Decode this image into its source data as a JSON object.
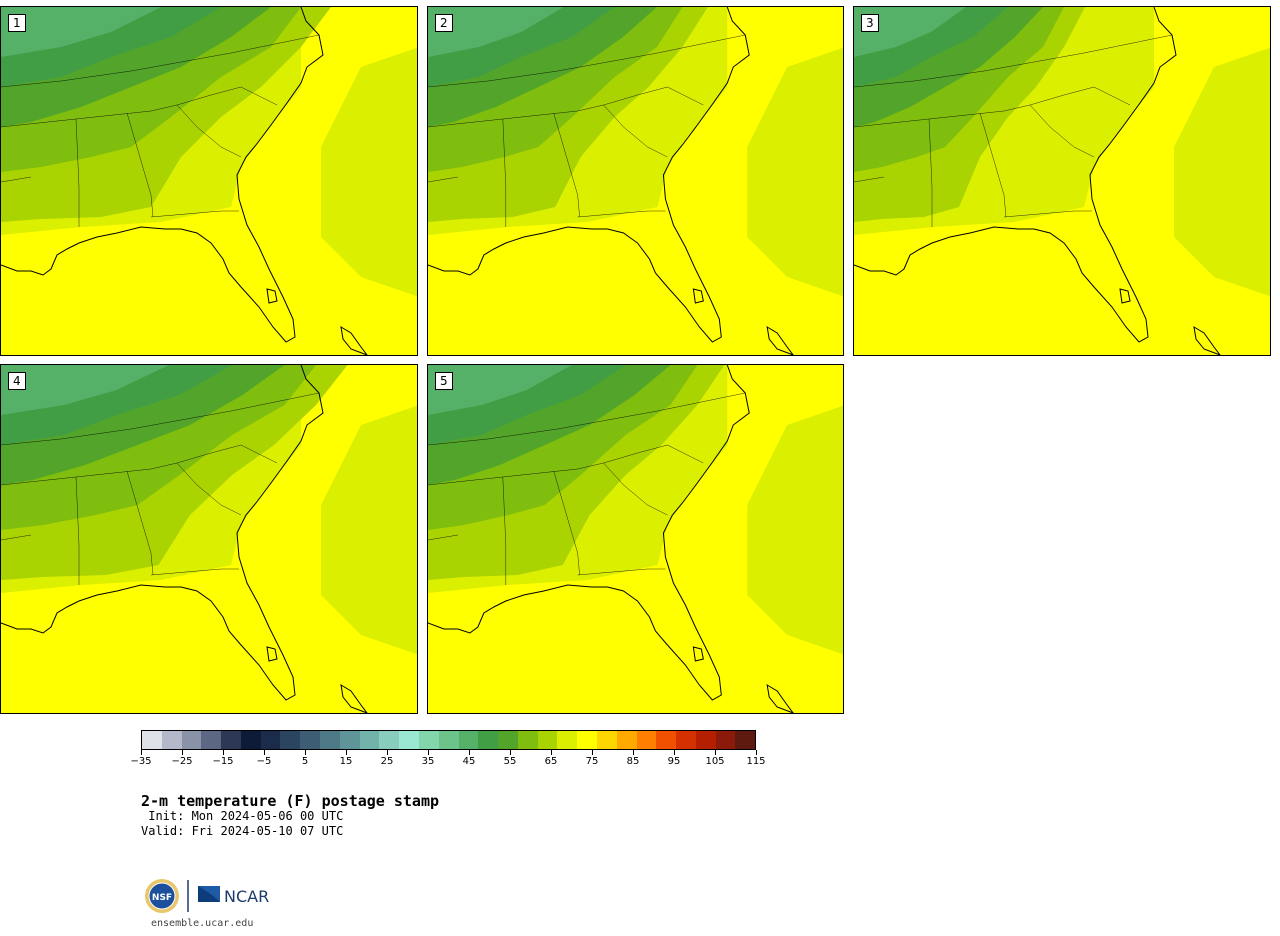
{
  "panels": [
    {
      "label": "1",
      "scale": 1.0
    },
    {
      "label": "2",
      "scale": 0.85
    },
    {
      "label": "3",
      "scale": 0.7
    },
    {
      "label": "4",
      "scale": 1.05
    },
    {
      "label": "5",
      "scale": 0.9
    }
  ],
  "colorbar": {
    "colors": [
      "#dfe3e8",
      "#b4b8c8",
      "#8a92a8",
      "#5b6783",
      "#2c3856",
      "#0d1a38",
      "#1a2b4b",
      "#2b4561",
      "#3d5d74",
      "#4e7a87",
      "#5f9599",
      "#73b1ab",
      "#88cdbe",
      "#9ae8d1",
      "#83d6ac",
      "#6cc48b",
      "#56b168",
      "#429e45",
      "#52a52a",
      "#7fbd0e",
      "#aad302",
      "#dbef00",
      "#ffff00",
      "#ffd700",
      "#ffaa00",
      "#ff7f00",
      "#f05000",
      "#d43000",
      "#b41f00",
      "#8b1a0a",
      "#5e1a0f"
    ],
    "tick_labels": [
      "−35",
      "−25",
      "−15",
      "−5",
      "5",
      "15",
      "25",
      "35",
      "45",
      "55",
      "65",
      "75",
      "85",
      "95",
      "105",
      "115"
    ]
  },
  "title": "2-m temperature (F) postage stamp",
  "init_line": " Init: Mon 2024-05-06 00 UTC",
  "valid_line": "Valid: Fri 2024-05-10 07 UTC",
  "site": "ensemble.ucar.edu",
  "logos": {
    "nsf": "NSF",
    "ncar": "NCAR"
  }
}
